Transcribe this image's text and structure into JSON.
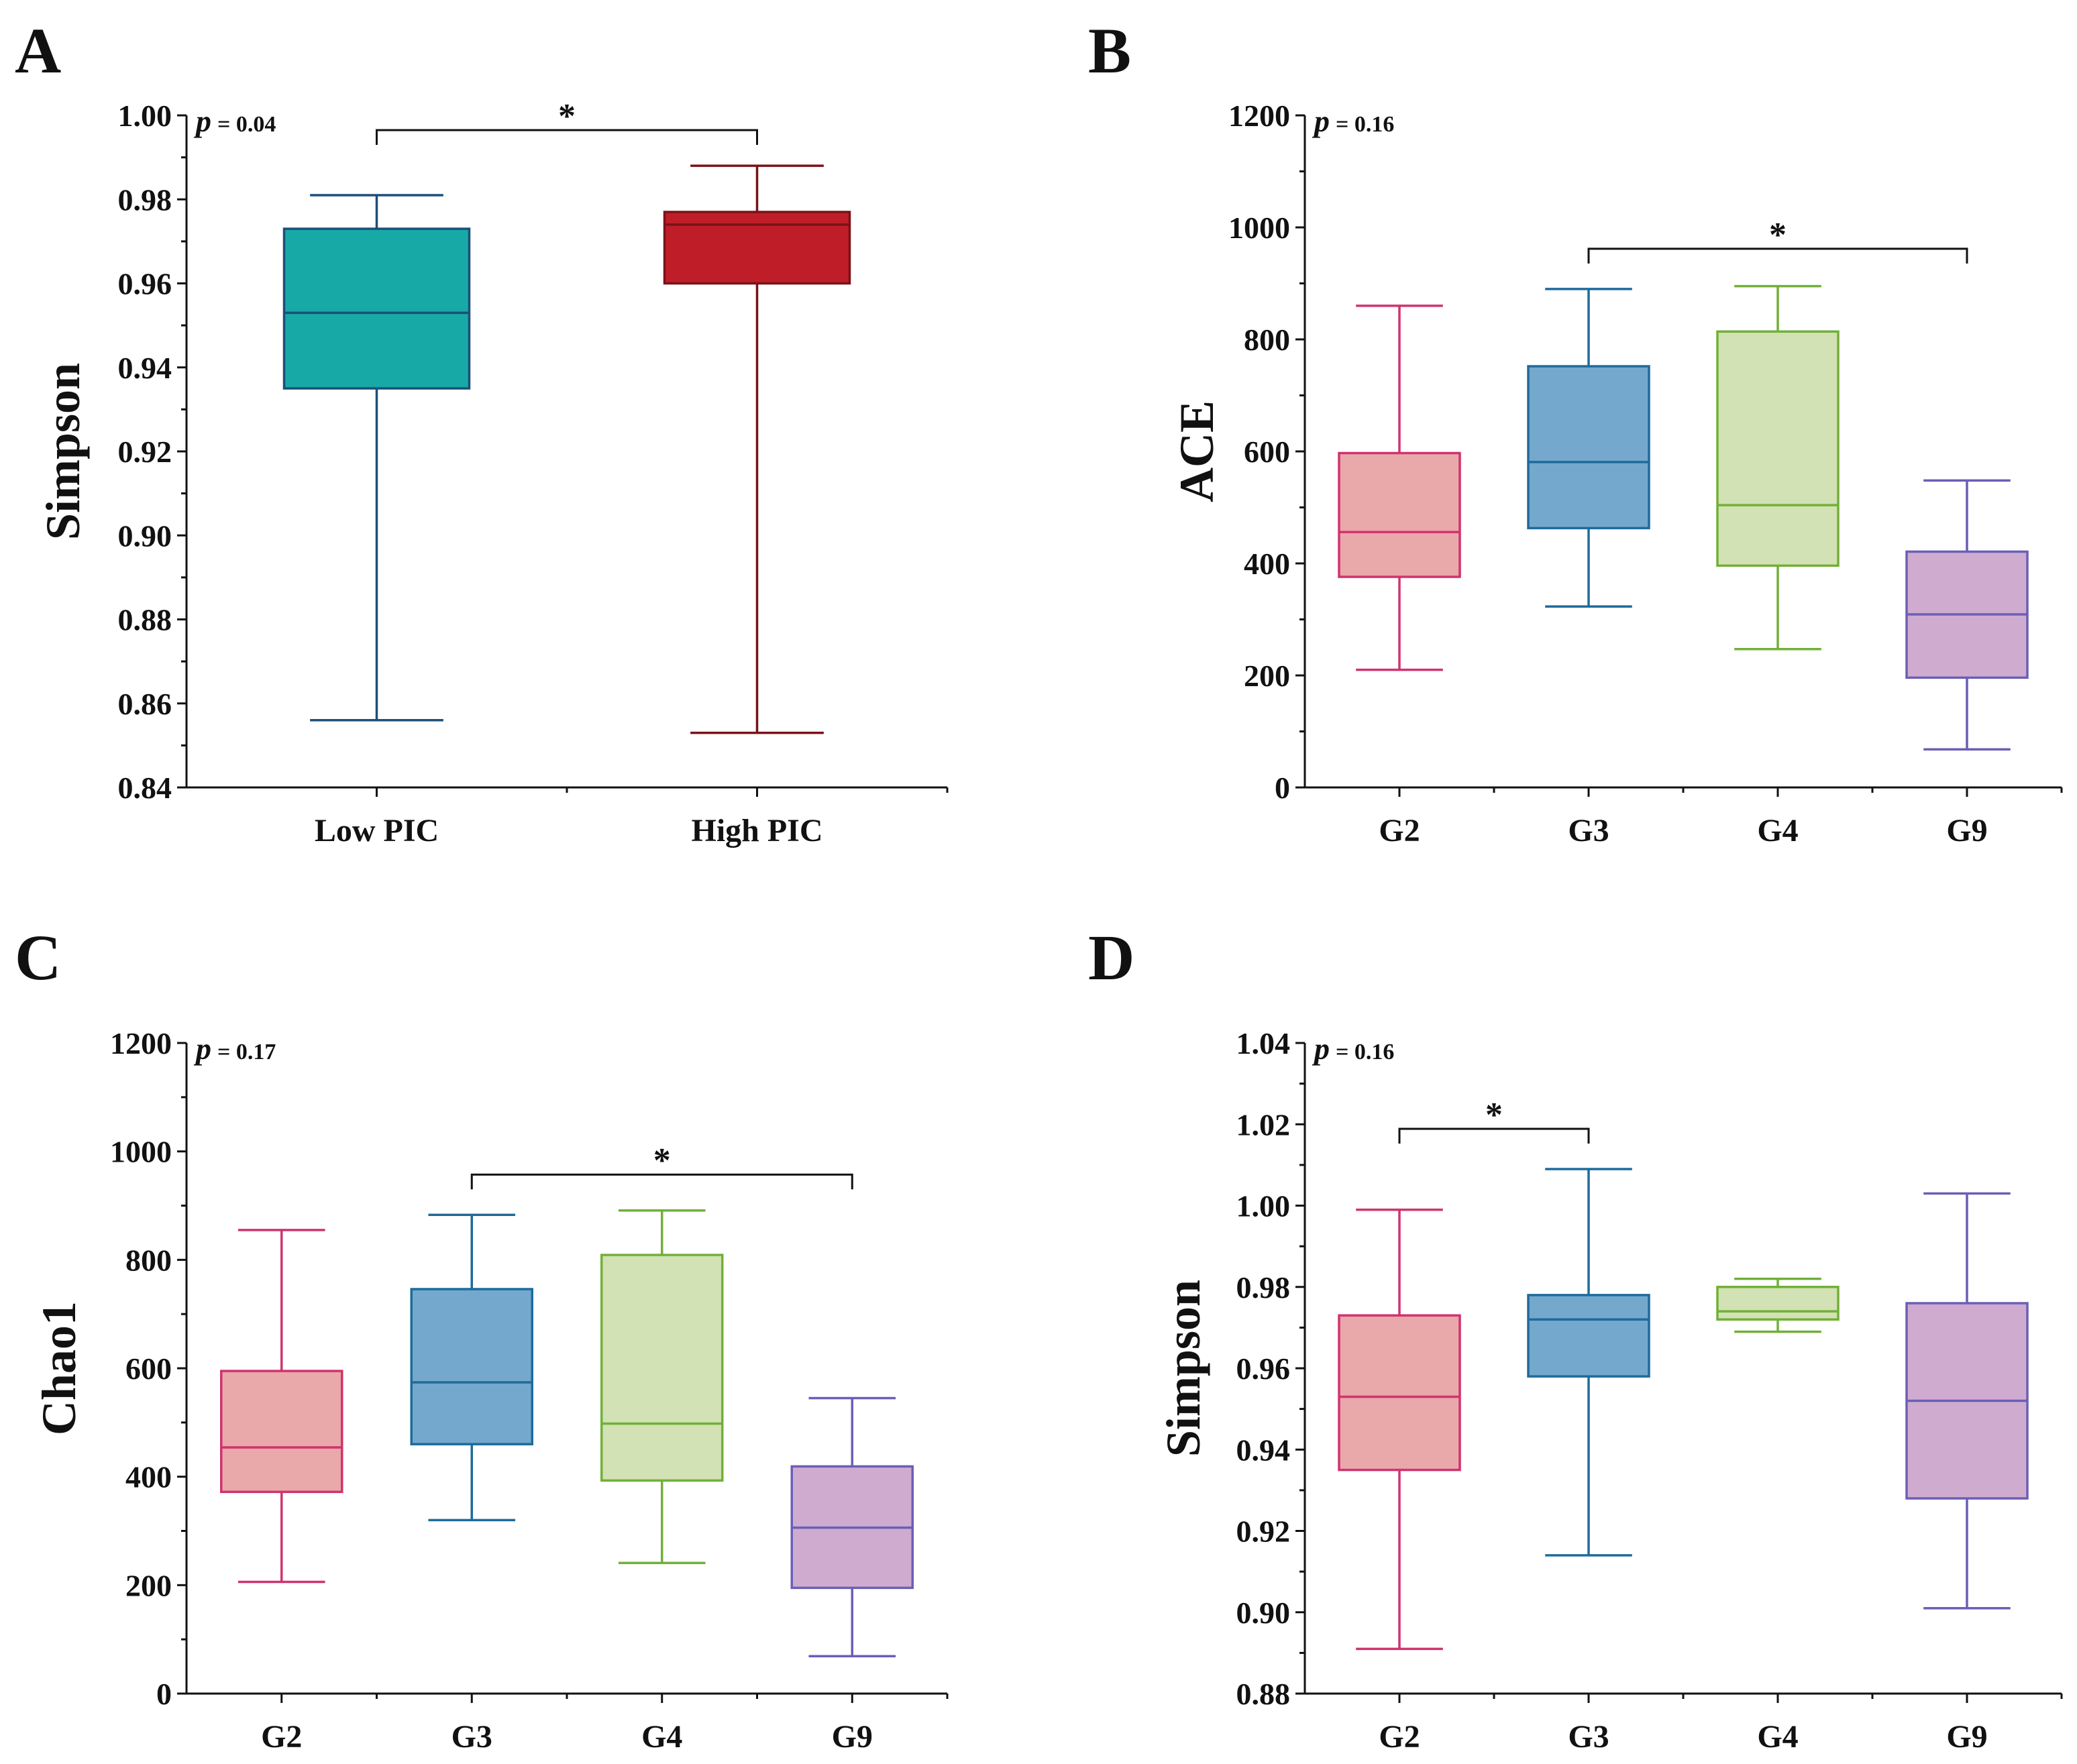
{
  "chart_data": [
    {
      "panel": "A",
      "type": "box",
      "ylabel": "Simpson",
      "xlabel": "",
      "p_label": "p",
      "p_value": "= 0.04",
      "ylim": [
        0.84,
        1.0
      ],
      "yticks": [
        0.84,
        0.86,
        0.88,
        0.9,
        0.92,
        0.94,
        0.96,
        0.98,
        1.0
      ],
      "ytick_labels": [
        "0.84",
        "0.86",
        "0.88",
        "0.90",
        "0.92",
        "0.94",
        "0.96",
        "0.98",
        "1.00"
      ],
      "categories": [
        "Low PIC",
        "High PIC"
      ],
      "boxes": [
        {
          "name": "Low PIC",
          "min": 0.856,
          "q1": 0.935,
          "median": 0.953,
          "q3": 0.973,
          "max": 0.981,
          "fill": "#17a9a6",
          "stroke": "#1d4f7a"
        },
        {
          "name": "High PIC",
          "min": 0.853,
          "q1": 0.96,
          "median": 0.974,
          "q3": 0.977,
          "max": 0.988,
          "fill": "#bf1e28",
          "stroke": "#7a1218"
        }
      ],
      "significance": [
        {
          "from": 0,
          "to": 1,
          "label": "*"
        }
      ]
    },
    {
      "panel": "B",
      "type": "box",
      "ylabel": "ACE",
      "xlabel": "",
      "p_label": "p",
      "p_value": "= 0.16",
      "ylim": [
        0,
        1200
      ],
      "yticks": [
        0,
        200,
        400,
        600,
        800,
        1000,
        1200
      ],
      "ytick_labels": [
        "0",
        "200",
        "400",
        "600",
        "800",
        "1000",
        "1200"
      ],
      "categories": [
        "G2",
        "G3",
        "G4",
        "G9"
      ],
      "boxes": [
        {
          "name": "G2",
          "min": 210,
          "q1": 376,
          "median": 456,
          "q3": 597,
          "max": 860,
          "fill": "#e9a8aa",
          "stroke": "#d0336e"
        },
        {
          "name": "G3",
          "min": 323,
          "q1": 463,
          "median": 581,
          "q3": 752,
          "max": 890,
          "fill": "#74a8cd",
          "stroke": "#1e6b9b"
        },
        {
          "name": "G4",
          "min": 247,
          "q1": 396,
          "median": 504,
          "q3": 814,
          "max": 895,
          "fill": "#d2e2b5",
          "stroke": "#71b038"
        },
        {
          "name": "G9",
          "min": 68,
          "q1": 196,
          "median": 309,
          "q3": 421,
          "max": 548,
          "fill": "#cfabd0",
          "stroke": "#6b5fb5"
        }
      ],
      "significance": [
        {
          "from": 1,
          "to": 3,
          "label": "*"
        }
      ]
    },
    {
      "panel": "C",
      "type": "box",
      "ylabel": "Chao1",
      "xlabel": "",
      "p_label": "p",
      "p_value": "= 0.17",
      "ylim": [
        0,
        1200
      ],
      "yticks": [
        0,
        200,
        400,
        600,
        800,
        1000,
        1200
      ],
      "ytick_labels": [
        "0",
        "200",
        "400",
        "600",
        "800",
        "1000",
        "1200"
      ],
      "categories": [
        "G2",
        "G3",
        "G4",
        "G9"
      ],
      "boxes": [
        {
          "name": "G2",
          "min": 206,
          "q1": 372,
          "median": 454,
          "q3": 595,
          "max": 855,
          "fill": "#e9a8aa",
          "stroke": "#d0336e"
        },
        {
          "name": "G3",
          "min": 320,
          "q1": 460,
          "median": 574,
          "q3": 746,
          "max": 883,
          "fill": "#74a8cd",
          "stroke": "#1e6b9b"
        },
        {
          "name": "G4",
          "min": 241,
          "q1": 393,
          "median": 498,
          "q3": 809,
          "max": 891,
          "fill": "#d2e2b5",
          "stroke": "#71b038"
        },
        {
          "name": "G9",
          "min": 69,
          "q1": 195,
          "median": 306,
          "q3": 419,
          "max": 545,
          "fill": "#cfabd0",
          "stroke": "#6b5fb5"
        }
      ],
      "significance": [
        {
          "from": 1,
          "to": 3,
          "label": "*"
        }
      ]
    },
    {
      "panel": "D",
      "type": "box",
      "ylabel": "Simpson",
      "xlabel": "",
      "p_label": "p",
      "p_value": "= 0.16",
      "ylim": [
        0.88,
        1.04
      ],
      "yticks": [
        0.88,
        0.9,
        0.92,
        0.94,
        0.96,
        0.98,
        1.0,
        1.02,
        1.04
      ],
      "ytick_labels": [
        "0.88",
        "0.90",
        "0.92",
        "0.94",
        "0.96",
        "0.98",
        "1.00",
        "1.02",
        "1.04"
      ],
      "categories": [
        "G2",
        "G3",
        "G4",
        "G9"
      ],
      "boxes": [
        {
          "name": "G2",
          "min": 0.891,
          "q1": 0.935,
          "median": 0.953,
          "q3": 0.973,
          "max": 0.999,
          "fill": "#e9a8aa",
          "stroke": "#d0336e"
        },
        {
          "name": "G3",
          "min": 0.914,
          "q1": 0.958,
          "median": 0.972,
          "q3": 0.978,
          "max": 1.009,
          "fill": "#74a8cd",
          "stroke": "#1e6b9b"
        },
        {
          "name": "G4",
          "min": 0.969,
          "q1": 0.972,
          "median": 0.974,
          "q3": 0.98,
          "max": 0.982,
          "fill": "#d2e2b5",
          "stroke": "#71b038"
        },
        {
          "name": "G9",
          "min": 0.901,
          "q1": 0.928,
          "median": 0.952,
          "q3": 0.976,
          "max": 1.003,
          "fill": "#cfabd0",
          "stroke": "#6b5fb5"
        }
      ],
      "significance": [
        {
          "from": 0,
          "to": 1,
          "label": "*"
        }
      ]
    }
  ]
}
